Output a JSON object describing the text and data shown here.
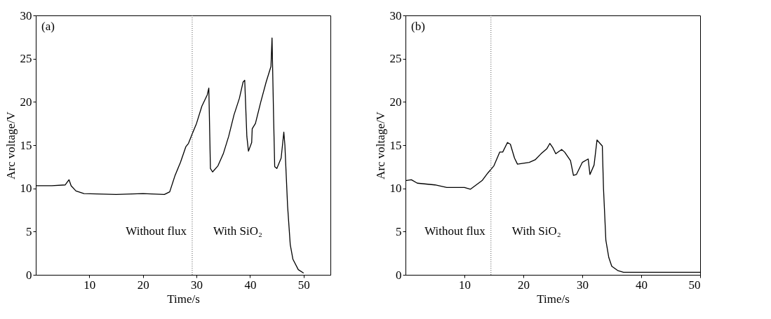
{
  "chart_data": [
    {
      "type": "line",
      "xlabel": "Time/s",
      "ylabel": "Arc voltage/V",
      "xlim": [
        0,
        55
      ],
      "ylim": [
        0,
        30
      ],
      "xticks": [
        10,
        20,
        30,
        40,
        50
      ],
      "yticks": [
        0,
        5,
        10,
        15,
        20,
        25,
        30
      ],
      "grid": false,
      "annotations": [
        "(a)",
        "Without flux",
        "With SiO₂"
      ],
      "ref_lines": [
        {
          "axis": "x",
          "value": 29.2,
          "color": "#555555",
          "line_style": "dotted"
        }
      ],
      "series": [
        {
          "color": "#000000",
          "x": [
            0,
            3,
            5.5,
            6.2,
            6.6,
            7.5,
            9,
            15,
            20,
            24,
            25,
            26,
            27,
            28,
            28.5,
            29.2,
            30,
            31,
            32,
            32.3,
            32.6,
            33,
            34,
            35,
            36,
            37,
            38,
            38.7,
            39,
            39.4,
            39.7,
            40.3,
            40.4,
            41,
            42,
            43,
            43.9,
            44.1,
            44.4,
            44.6,
            45,
            45.8,
            46.3,
            46.5,
            47,
            47.5,
            48,
            49,
            50
          ],
          "values": [
            10.3,
            10.3,
            10.4,
            11.0,
            10.3,
            9.7,
            9.4,
            9.3,
            9.4,
            9.3,
            9.6,
            11.5,
            13,
            14.8,
            15.2,
            16.3,
            17.5,
            19.5,
            20.8,
            21.6,
            12.3,
            11.9,
            12.6,
            14,
            16,
            18.5,
            20.4,
            22.3,
            22.5,
            16,
            14.3,
            15.3,
            16.9,
            17.5,
            20,
            22.3,
            24.1,
            27.4,
            18,
            12.5,
            12.3,
            13.5,
            16.5,
            15,
            8,
            3.5,
            1.8,
            0.6,
            0.2
          ]
        }
      ]
    },
    {
      "type": "line",
      "xlabel": "Time/s",
      "ylabel": "Arc voltage/V",
      "xlim": [
        0,
        50
      ],
      "ylim": [
        0,
        30
      ],
      "xticks": [
        10,
        20,
        30,
        40,
        50
      ],
      "yticks": [
        0,
        5,
        10,
        15,
        20,
        25,
        30
      ],
      "grid": false,
      "annotations": [
        "(b)",
        "Without flux",
        "With SiO₂"
      ],
      "ref_lines": [
        {
          "axis": "x",
          "value": 14.5,
          "color": "#555555",
          "line_style": "dotted"
        }
      ],
      "series": [
        {
          "color": "#000000",
          "x": [
            0,
            1,
            2,
            5,
            7,
            10,
            11,
            12,
            13,
            14,
            15,
            16,
            16.5,
            17.3,
            17.8,
            18.5,
            19,
            21,
            22,
            23,
            24,
            24.5,
            25,
            25.5,
            26.5,
            27,
            28,
            28.5,
            29,
            30,
            31,
            31.3,
            32,
            32.5,
            33,
            33.4,
            33.6,
            34,
            34.5,
            35,
            36,
            37,
            40,
            50
          ],
          "values": [
            10.9,
            11.0,
            10.6,
            10.4,
            10.1,
            10.1,
            9.9,
            10.4,
            10.9,
            11.8,
            12.6,
            14.2,
            14.2,
            15.3,
            15.1,
            13.5,
            12.8,
            13.0,
            13.3,
            14.0,
            14.6,
            15.2,
            14.7,
            14.0,
            14.5,
            14.2,
            13.2,
            11.5,
            11.6,
            13.0,
            13.4,
            11.6,
            12.7,
            15.6,
            15.2,
            14.9,
            10,
            4,
            2,
            1,
            0.5,
            0.3,
            0.3,
            0.3
          ]
        }
      ]
    }
  ]
}
